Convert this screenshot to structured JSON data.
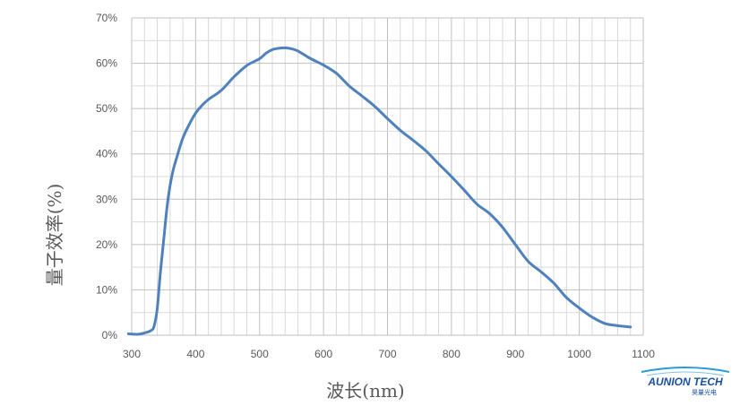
{
  "chart_data": {
    "type": "line",
    "title": "",
    "xlabel": "波长(nm)",
    "ylabel": "量子效率(%)",
    "xlim": [
      300,
      1100
    ],
    "ylim": [
      0,
      70
    ],
    "x_ticks": [
      "300",
      "400",
      "500",
      "600",
      "700",
      "800",
      "900",
      "1000",
      "1100"
    ],
    "y_ticks": [
      "0%",
      "10%",
      "20%",
      "30%",
      "40%",
      "50%",
      "60%",
      "70%"
    ],
    "grid": true,
    "line_color": "#4f81bd",
    "series": [
      {
        "x": [
          295,
          310,
          320,
          330,
          335,
          340,
          345,
          350,
          355,
          360,
          365,
          370,
          380,
          390,
          400,
          410,
          420,
          440,
          460,
          480,
          500,
          510,
          520,
          530,
          540,
          550,
          560,
          580,
          600,
          620,
          640,
          660,
          680,
          700,
          720,
          740,
          760,
          780,
          800,
          820,
          840,
          860,
          880,
          900,
          920,
          940,
          960,
          980,
          1000,
          1020,
          1040,
          1060,
          1080
        ],
        "y": [
          0.3,
          0.2,
          0.5,
          1.0,
          2.0,
          6.0,
          14.0,
          21.0,
          28.0,
          33.0,
          36.5,
          39.0,
          43.5,
          46.5,
          49.0,
          50.7,
          52.0,
          54.0,
          57.0,
          59.5,
          61.0,
          62.2,
          63.0,
          63.3,
          63.4,
          63.2,
          62.7,
          61.0,
          59.6,
          57.8,
          55.0,
          52.8,
          50.5,
          47.8,
          45.2,
          43.0,
          40.7,
          37.8,
          35.0,
          32.0,
          28.9,
          26.8,
          23.8,
          20.0,
          16.3,
          14.0,
          11.5,
          8.3,
          6.0,
          4.0,
          2.6,
          2.1,
          1.8
        ]
      }
    ]
  },
  "logo": {
    "name": "AUNION TECH",
    "subtitle": "昊量光电"
  }
}
